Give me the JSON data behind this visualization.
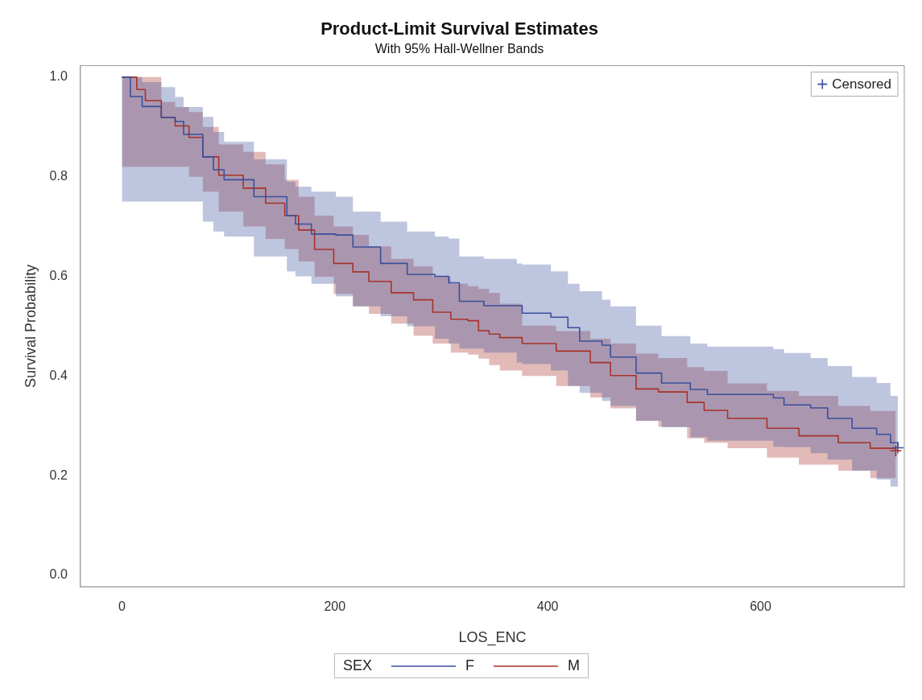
{
  "chart_data": {
    "type": "step",
    "title": "Product-Limit Survival Estimates",
    "subtitle": "With 95% Hall-Wellner Bands",
    "xlabel": "LOS_ENC",
    "ylabel": "Survival Probability",
    "legend_title": "SEX",
    "legend": "bottom",
    "grid": false,
    "xlim": [
      -39,
      735
    ],
    "xticks": [
      0,
      200,
      400,
      600
    ],
    "ylim": [
      -0.023,
      1.023
    ],
    "yticks": [
      {
        "value": 0,
        "label": "0.0"
      },
      0.2,
      0.4,
      0.6,
      0.8,
      {
        "value": 1,
        "label": "1.0"
      }
    ],
    "series": [
      {
        "name": "F",
        "color": "#3a4f9c",
        "x": [
          0,
          8,
          19,
          37,
          50,
          58,
          76,
          86,
          96,
          124,
          155,
          163,
          178,
          201,
          217,
          243,
          268,
          294,
          307,
          317,
          340,
          371,
          376,
          403,
          419,
          430,
          451,
          459,
          483,
          507,
          534,
          550,
          612,
          622,
          647,
          663,
          686,
          709,
          722,
          729
        ],
        "values": [
          1.0,
          0.961,
          0.941,
          0.919,
          0.911,
          0.885,
          0.84,
          0.814,
          0.794,
          0.76,
          0.722,
          0.705,
          0.685,
          0.683,
          0.659,
          0.626,
          0.604,
          0.6,
          0.587,
          0.55,
          0.541,
          0.541,
          0.526,
          0.518,
          0.497,
          0.47,
          0.462,
          0.438,
          0.406,
          0.386,
          0.373,
          0.363,
          0.356,
          0.342,
          0.336,
          0.315,
          0.295,
          0.283,
          0.266,
          0.256
        ],
        "lower": [
          0.75,
          0.75,
          0.75,
          0.75,
          0.75,
          0.75,
          0.71,
          0.69,
          0.68,
          0.64,
          0.61,
          0.6,
          0.585,
          0.56,
          0.54,
          0.52,
          0.5,
          0.475,
          0.465,
          0.455,
          0.447,
          0.427,
          0.424,
          0.411,
          0.38,
          0.366,
          0.35,
          0.34,
          0.31,
          0.297,
          0.277,
          0.27,
          0.258,
          0.257,
          0.245,
          0.232,
          0.21,
          0.192,
          0.178,
          0.175
        ],
        "upper": [
          1.0,
          1.0,
          0.99,
          0.98,
          0.96,
          0.94,
          0.92,
          0.89,
          0.87,
          0.835,
          0.79,
          0.78,
          0.77,
          0.76,
          0.73,
          0.71,
          0.69,
          0.68,
          0.676,
          0.64,
          0.635,
          0.626,
          0.624,
          0.61,
          0.585,
          0.57,
          0.553,
          0.54,
          0.501,
          0.48,
          0.465,
          0.459,
          0.454,
          0.446,
          0.436,
          0.42,
          0.398,
          0.386,
          0.36,
          0.36
        ]
      },
      {
        "name": "M",
        "color": "#a8322a",
        "x": [
          0,
          14,
          22,
          37,
          50,
          63,
          76,
          91,
          114,
          135,
          153,
          166,
          181,
          199,
          217,
          232,
          253,
          274,
          292,
          309,
          325,
          335,
          345,
          355,
          376,
          408,
          440,
          459,
          483,
          504,
          531,
          547,
          569,
          606,
          636,
          673,
          703,
          727
        ],
        "values": [
          1.0,
          0.975,
          0.953,
          0.919,
          0.902,
          0.879,
          0.84,
          0.803,
          0.777,
          0.747,
          0.722,
          0.693,
          0.654,
          0.626,
          0.609,
          0.59,
          0.567,
          0.553,
          0.528,
          0.514,
          0.511,
          0.491,
          0.484,
          0.477,
          0.465,
          0.45,
          0.427,
          0.401,
          0.374,
          0.368,
          0.347,
          0.331,
          0.315,
          0.295,
          0.28,
          0.266,
          0.255,
          0.25
        ],
        "lower": [
          0.82,
          0.82,
          0.82,
          0.82,
          0.82,
          0.8,
          0.77,
          0.73,
          0.7,
          0.675,
          0.655,
          0.63,
          0.599,
          0.565,
          0.54,
          0.525,
          0.505,
          0.481,
          0.465,
          0.447,
          0.443,
          0.435,
          0.422,
          0.411,
          0.4,
          0.38,
          0.357,
          0.335,
          0.31,
          0.298,
          0.275,
          0.266,
          0.255,
          0.236,
          0.222,
          0.21,
          0.195,
          0.187
        ],
        "upper": [
          1.0,
          1.0,
          1.0,
          0.95,
          0.94,
          0.93,
          0.9,
          0.865,
          0.85,
          0.825,
          0.794,
          0.76,
          0.722,
          0.7,
          0.683,
          0.66,
          0.635,
          0.62,
          0.6,
          0.585,
          0.58,
          0.575,
          0.567,
          0.545,
          0.501,
          0.49,
          0.475,
          0.465,
          0.445,
          0.436,
          0.418,
          0.41,
          0.385,
          0.37,
          0.36,
          0.34,
          0.33,
          0.322
        ]
      },
      {
        "name": "Censored",
        "type": "scatter",
        "marker": "cross",
        "colors": [
          "#3a4f9c",
          "#a8322a"
        ],
        "x": [
          729,
          727
        ],
        "values": [
          0.256,
          0.25
        ]
      }
    ]
  }
}
